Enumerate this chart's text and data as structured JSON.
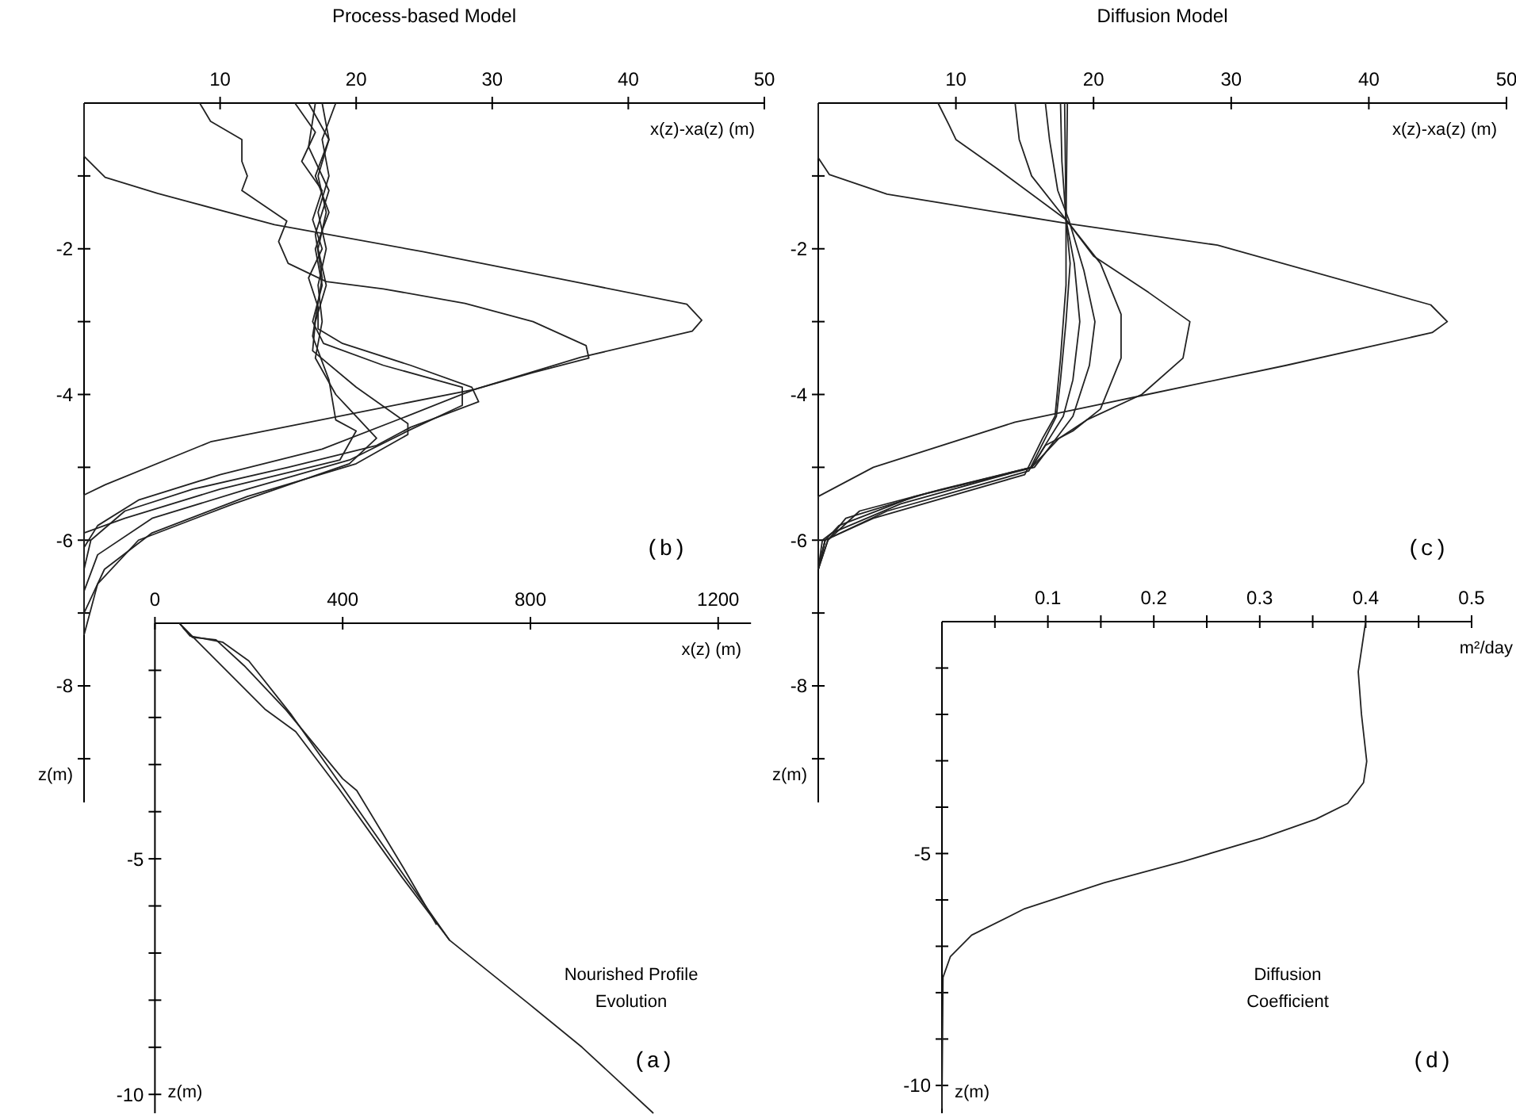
{
  "chart_data": [
    {
      "type": "line",
      "title": "Process-based Model",
      "xlabel": "x(z)-xa(z) (m)",
      "ylabel": "z(m)",
      "annotations": [
        "(b)"
      ],
      "xlim": [
        0,
        50
      ],
      "xticks": [
        10,
        20,
        30,
        40,
        50
      ],
      "ylim": [
        -9.6,
        0
      ],
      "yticks": [
        {
          "value": -1,
          "label": null
        },
        -2,
        {
          "value": -3,
          "label": null
        },
        -4,
        {
          "value": -5,
          "label": null
        },
        -6,
        {
          "value": -7,
          "label": null
        },
        -8,
        {
          "value": -9,
          "label": null
        }
      ],
      "series": [
        {
          "color": "#222222",
          "x": [
            0,
            0,
            1.55,
            5.4,
            14,
            24.9,
            36.5,
            44.3,
            45.4,
            44.7,
            36.5,
            28.7,
            17.1,
            9.3,
            1.55,
            0,
            0
          ],
          "values": [
            0,
            -0.73,
            -1.02,
            -1.24,
            -1.67,
            -2.04,
            -2.47,
            -2.76,
            -2.98,
            -3.13,
            -3.49,
            -3.93,
            -4.36,
            -4.65,
            -5.24,
            -5.38,
            -7.3
          ]
        },
        {
          "color": "#222222",
          "x": [
            8.5,
            9.3,
            11.6,
            11.6,
            12,
            11.6,
            14.9,
            14.3,
            15,
            17.8,
            22,
            28,
            33,
            36.9,
            37.1,
            33,
            28.7,
            23.7,
            17.5,
            10,
            4,
            1,
            0
          ],
          "values": [
            0,
            -0.25,
            -0.5,
            -0.8,
            -1,
            -1.2,
            -1.62,
            -1.9,
            -2.2,
            -2.45,
            -2.55,
            -2.75,
            -3,
            -3.33,
            -3.5,
            -3.7,
            -3.93,
            -4.3,
            -4.75,
            -5.1,
            -5.45,
            -5.8,
            -6.1
          ]
        },
        {
          "color": "#222222",
          "x": [
            15.5,
            17,
            16,
            17.5,
            16.8,
            17.5,
            16.5,
            17.2,
            17.2,
            19,
            24,
            28.5,
            29,
            24,
            21.5,
            15,
            8,
            3,
            0.5,
            0
          ],
          "values": [
            0,
            -0.4,
            -0.8,
            -1.2,
            -1.6,
            -2,
            -2.4,
            -2.8,
            -3.1,
            -3.3,
            -3.6,
            -3.9,
            -4.1,
            -4.45,
            -4.7,
            -5,
            -5.3,
            -5.6,
            -6,
            -6.4
          ]
        },
        {
          "color": "#222222",
          "x": [
            16.5,
            18,
            17,
            18,
            17,
            17.5,
            16.8,
            17.6,
            22,
            27.8,
            27.8,
            23.8,
            19.5,
            12,
            5,
            1,
            0
          ],
          "values": [
            0,
            -0.5,
            -1,
            -1.5,
            -2,
            -2.5,
            -3,
            -3.3,
            -3.6,
            -3.9,
            -4.15,
            -4.5,
            -4.9,
            -5.3,
            -5.7,
            -6.2,
            -6.7
          ]
        },
        {
          "color": "#222222",
          "x": [
            17.5,
            18,
            17.2,
            17.8,
            17.2,
            17.8,
            17,
            16.8,
            20,
            23.8,
            23.8,
            20,
            12,
            5,
            1.5,
            0
          ],
          "values": [
            0,
            -0.5,
            -1,
            -1.5,
            -2,
            -2.5,
            -3,
            -3.4,
            -3.9,
            -4.4,
            -4.55,
            -4.95,
            -5.4,
            -5.9,
            -6.4,
            -7
          ]
        },
        {
          "color": "#222222",
          "x": [
            18.5,
            17.5,
            18,
            17.2,
            17.8,
            17.2,
            17.5,
            17,
            18.5,
            21.5,
            19.5,
            11,
            4,
            1,
            0
          ],
          "values": [
            0,
            -0.5,
            -1,
            -1.5,
            -2,
            -2.5,
            -3,
            -3.5,
            -4,
            -4.6,
            -4.95,
            -5.5,
            -6,
            -6.6,
            -7.3
          ]
        },
        {
          "color": "#222222",
          "x": [
            17,
            16.5,
            18,
            17,
            17.5,
            16.8,
            18,
            18.5,
            20,
            18.8,
            10,
            3,
            0
          ],
          "values": [
            0,
            -0.6,
            -1.2,
            -1.8,
            -2.4,
            -3.2,
            -3.8,
            -4.35,
            -4.5,
            -4.9,
            -5.3,
            -5.7,
            -5.9
          ]
        }
      ]
    },
    {
      "type": "line",
      "title": "Diffusion Model",
      "xlabel": "x(z)-xa(z) (m)",
      "ylabel": "z(m)",
      "annotations": [
        "(c)"
      ],
      "xlim": [
        0,
        50
      ],
      "xticks": [
        10,
        20,
        30,
        40,
        50
      ],
      "ylim": [
        -9.6,
        0
      ],
      "yticks": [
        {
          "value": -1,
          "label": null
        },
        -2,
        {
          "value": -3,
          "label": null
        },
        -4,
        {
          "value": -5,
          "label": null
        },
        -6,
        {
          "value": -7,
          "label": null
        },
        -8,
        {
          "value": -9,
          "label": null
        }
      ],
      "series": [
        {
          "color": "#222222",
          "x": [
            0,
            0,
            0.8,
            5,
            18,
            29,
            44.5,
            45.7,
            44.6,
            34,
            23.9,
            14.3,
            4,
            0,
            0
          ],
          "values": [
            0,
            -0.75,
            -0.98,
            -1.25,
            -1.65,
            -1.95,
            -2.77,
            -3,
            -3.15,
            -3.6,
            -4,
            -4.38,
            -5,
            -5.4,
            -6.4
          ]
        },
        {
          "color": "#222222",
          "x": [
            8.7,
            9.5,
            10,
            13,
            18,
            20,
            24,
            27,
            26.5,
            23.5,
            19.5,
            17.5,
            15.5,
            9,
            3,
            0.7,
            0
          ],
          "values": [
            0,
            -0.3,
            -0.5,
            -0.9,
            -1.6,
            -2.1,
            -2.6,
            -3,
            -3.5,
            -4,
            -4.35,
            -4.6,
            -5,
            -5.3,
            -5.6,
            -6,
            -6.4
          ]
        },
        {
          "color": "#222222",
          "x": [
            14.3,
            14.6,
            15.5,
            18,
            20.5,
            22,
            22,
            20.5,
            18.5,
            16.5,
            15.5,
            8,
            2,
            0.7,
            0
          ],
          "values": [
            0,
            -0.5,
            -1,
            -1.6,
            -2.2,
            -2.9,
            -3.5,
            -4.2,
            -4.5,
            -4.7,
            -5,
            -5.35,
            -5.7,
            -6,
            -6.4
          ]
        },
        {
          "color": "#222222",
          "x": [
            16.5,
            16.8,
            17.4,
            18.2,
            19.3,
            20.1,
            19.7,
            18.5,
            17.5,
            15.7,
            7,
            1.5,
            0.5,
            0
          ],
          "values": [
            0,
            -0.5,
            -1.2,
            -1.6,
            -2.3,
            -3,
            -3.6,
            -4.3,
            -4.55,
            -5,
            -5.4,
            -5.8,
            -6,
            -6.4
          ]
        },
        {
          "color": "#222222",
          "x": [
            17.6,
            17.7,
            18,
            18.6,
            19,
            18.5,
            17.8,
            16.8,
            15.5,
            6,
            1,
            0.3,
            0
          ],
          "values": [
            0,
            -0.8,
            -1.6,
            -2.2,
            -3,
            -3.8,
            -4.3,
            -4.6,
            -5,
            -5.5,
            -5.9,
            -6,
            -6.4
          ]
        },
        {
          "color": "#222222",
          "x": [
            17.9,
            18,
            18.3,
            18,
            17.6,
            17.3,
            16.5,
            15.3,
            5,
            0.5,
            0
          ],
          "values": [
            0,
            -1.6,
            -2.2,
            -3,
            -3.8,
            -4.3,
            -4.6,
            -5.05,
            -5.6,
            -6,
            -6.4
          ]
        },
        {
          "color": "#222222",
          "x": [
            18.1,
            18,
            18,
            17.6,
            17.2,
            16.3,
            15,
            4,
            0.5,
            0
          ],
          "values": [
            0,
            -1.6,
            -2.5,
            -3.5,
            -4.3,
            -4.6,
            -5.1,
            -5.7,
            -6,
            -6.4
          ]
        }
      ]
    },
    {
      "type": "line",
      "xlabel": "x(z) (m)",
      "ylabel": "z(m)",
      "annotations": [
        "Nourished Profile Evolution",
        "(a)"
      ],
      "xlim": [
        0,
        1270
      ],
      "xticks": [
        0,
        400,
        800,
        1200
      ],
      "ylim": [
        -10.4,
        0
      ],
      "yticks": [
        {
          "value": -1,
          "label": null
        },
        {
          "value": -2,
          "label": null
        },
        {
          "value": -3,
          "label": null
        },
        {
          "value": -4,
          "label": null
        },
        -5,
        {
          "value": -6,
          "label": null
        },
        {
          "value": -7,
          "label": null
        },
        {
          "value": -8,
          "label": null
        },
        {
          "value": -9,
          "label": null
        },
        -10
      ],
      "series": [
        {
          "color": "#222222",
          "x": [
            52,
            234,
            300,
            391,
            527,
            628,
            797,
            910,
            1062
          ],
          "values": [
            0,
            -1.82,
            -2.3,
            -3.5,
            -5.4,
            -6.73,
            -8.08,
            -9,
            -10.4
          ]
        },
        {
          "color": "#222222",
          "x": [
            52,
            75,
            144,
            200,
            289,
            380,
            527,
            628
          ],
          "values": [
            0,
            -0.27,
            -0.4,
            -0.8,
            -1.92,
            -3.2,
            -5.3,
            -6.73
          ]
        },
        {
          "color": "#222222",
          "x": [
            60,
            80,
            130,
            190,
            280,
            400,
            430,
            530,
            600
          ],
          "values": [
            -0.1,
            -0.3,
            -0.35,
            -0.9,
            -1.85,
            -3.3,
            -3.55,
            -5.2,
            -6.4
          ]
        }
      ]
    },
    {
      "type": "line",
      "xlabel": "m²/day",
      "ylabel": "z(m)",
      "annotations": [
        "Diffusion Coefficient",
        "(d)"
      ],
      "xlim": [
        0,
        0.5
      ],
      "xticks": [
        {
          "value": 0.05,
          "label": null
        },
        0.1,
        {
          "value": 0.15,
          "label": null
        },
        0.2,
        {
          "value": 0.25,
          "label": null
        },
        0.3,
        {
          "value": 0.35,
          "label": null
        },
        0.4,
        {
          "value": 0.45,
          "label": null
        },
        0.5
      ],
      "ylim": [
        -10.6,
        0
      ],
      "yticks": [
        {
          "value": -1,
          "label": null
        },
        {
          "value": -2,
          "label": null
        },
        {
          "value": -3,
          "label": null
        },
        {
          "value": -4,
          "label": null
        },
        -5,
        {
          "value": -6,
          "label": null
        },
        {
          "value": -7,
          "label": null
        },
        {
          "value": -8,
          "label": null
        },
        {
          "value": -9,
          "label": null
        },
        -10
      ],
      "series": [
        {
          "color": "#222222",
          "x": [
            0.4,
            0.393,
            0.396,
            0.401,
            0.398,
            0.383,
            0.353,
            0.303,
            0.228,
            0.153,
            0.078,
            0.028,
            0.008,
            0.001,
            0
          ],
          "values": [
            0,
            -1.08,
            -1.99,
            -3.01,
            -3.47,
            -3.92,
            -4.26,
            -4.66,
            -5.17,
            -5.63,
            -6.19,
            -6.76,
            -7.22,
            -7.67,
            -10.5
          ]
        }
      ]
    }
  ]
}
